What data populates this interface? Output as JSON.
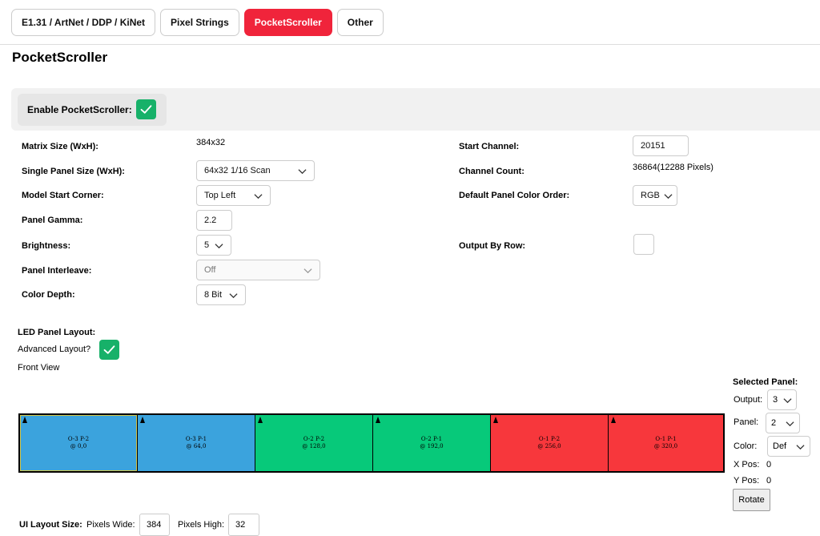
{
  "tabs": [
    {
      "label": "E1.31 / ArtNet / DDP / KiNet"
    },
    {
      "label": "Pixel Strings"
    },
    {
      "label": "PocketScroller",
      "active": true
    },
    {
      "label": "Other"
    }
  ],
  "page_title": "PocketScroller",
  "enable": {
    "label": "Enable PocketScroller:",
    "checked": true
  },
  "left_fields": {
    "matrix_size": {
      "label": "Matrix Size (WxH):",
      "value": "384x32"
    },
    "single_panel": {
      "label": "Single Panel Size (WxH):",
      "value": "64x32 1/16 Scan"
    },
    "start_corner": {
      "label": "Model Start Corner:",
      "value": "Top Left"
    },
    "gamma": {
      "label": "Panel Gamma:",
      "value": "2.2"
    },
    "brightness": {
      "label": "Brightness:",
      "value": "5"
    },
    "interleave": {
      "label": "Panel Interleave:",
      "value": "Off"
    },
    "color_depth": {
      "label": "Color Depth:",
      "value": "8 Bit"
    }
  },
  "right_fields": {
    "start_channel": {
      "label": "Start Channel:",
      "value": "20151"
    },
    "channel_count": {
      "label": "Channel Count:",
      "value": "36864(12288 Pixels)"
    },
    "color_order": {
      "label": "Default Panel Color Order:",
      "value": "RGB"
    },
    "output_by_row": {
      "label": "Output By Row:",
      "checked": false
    }
  },
  "layout": {
    "title": "LED Panel Layout:",
    "advanced_label": "Advanced Layout?",
    "advanced_checked": true,
    "view_label": "Front View"
  },
  "panels": [
    {
      "line1": "O-3 P-2",
      "line2": "@ 0,0",
      "color": "#3ba3dd",
      "selected": true
    },
    {
      "line1": "O-3 P-1",
      "line2": "@ 64,0",
      "color": "#3ba3dd"
    },
    {
      "line1": "O-2 P-2",
      "line2": "@ 128,0",
      "color": "#07c97a"
    },
    {
      "line1": "O-2 P-1",
      "line2": "@ 192,0",
      "color": "#07c97a"
    },
    {
      "line1": "O-1 P-2",
      "line2": "@ 256,0",
      "color": "#f7373c"
    },
    {
      "line1": "O-1 P-1",
      "line2": "@ 320,0",
      "color": "#f7373c"
    }
  ],
  "selected_panel": {
    "title": "Selected Panel:",
    "output_label": "Output:",
    "output_value": "3",
    "panel_label": "Panel:",
    "panel_value": "2",
    "color_label": "Color:",
    "color_value": "Def",
    "xpos_label": "X Pos:",
    "xpos_value": "0",
    "ypos_label": "Y Pos:",
    "ypos_value": "0",
    "rotate_label": "Rotate"
  },
  "ui_size": {
    "label": "UI Layout Size:",
    "wide_label": "Pixels Wide:",
    "wide_value": "384",
    "high_label": "Pixels High:",
    "high_value": "32"
  }
}
